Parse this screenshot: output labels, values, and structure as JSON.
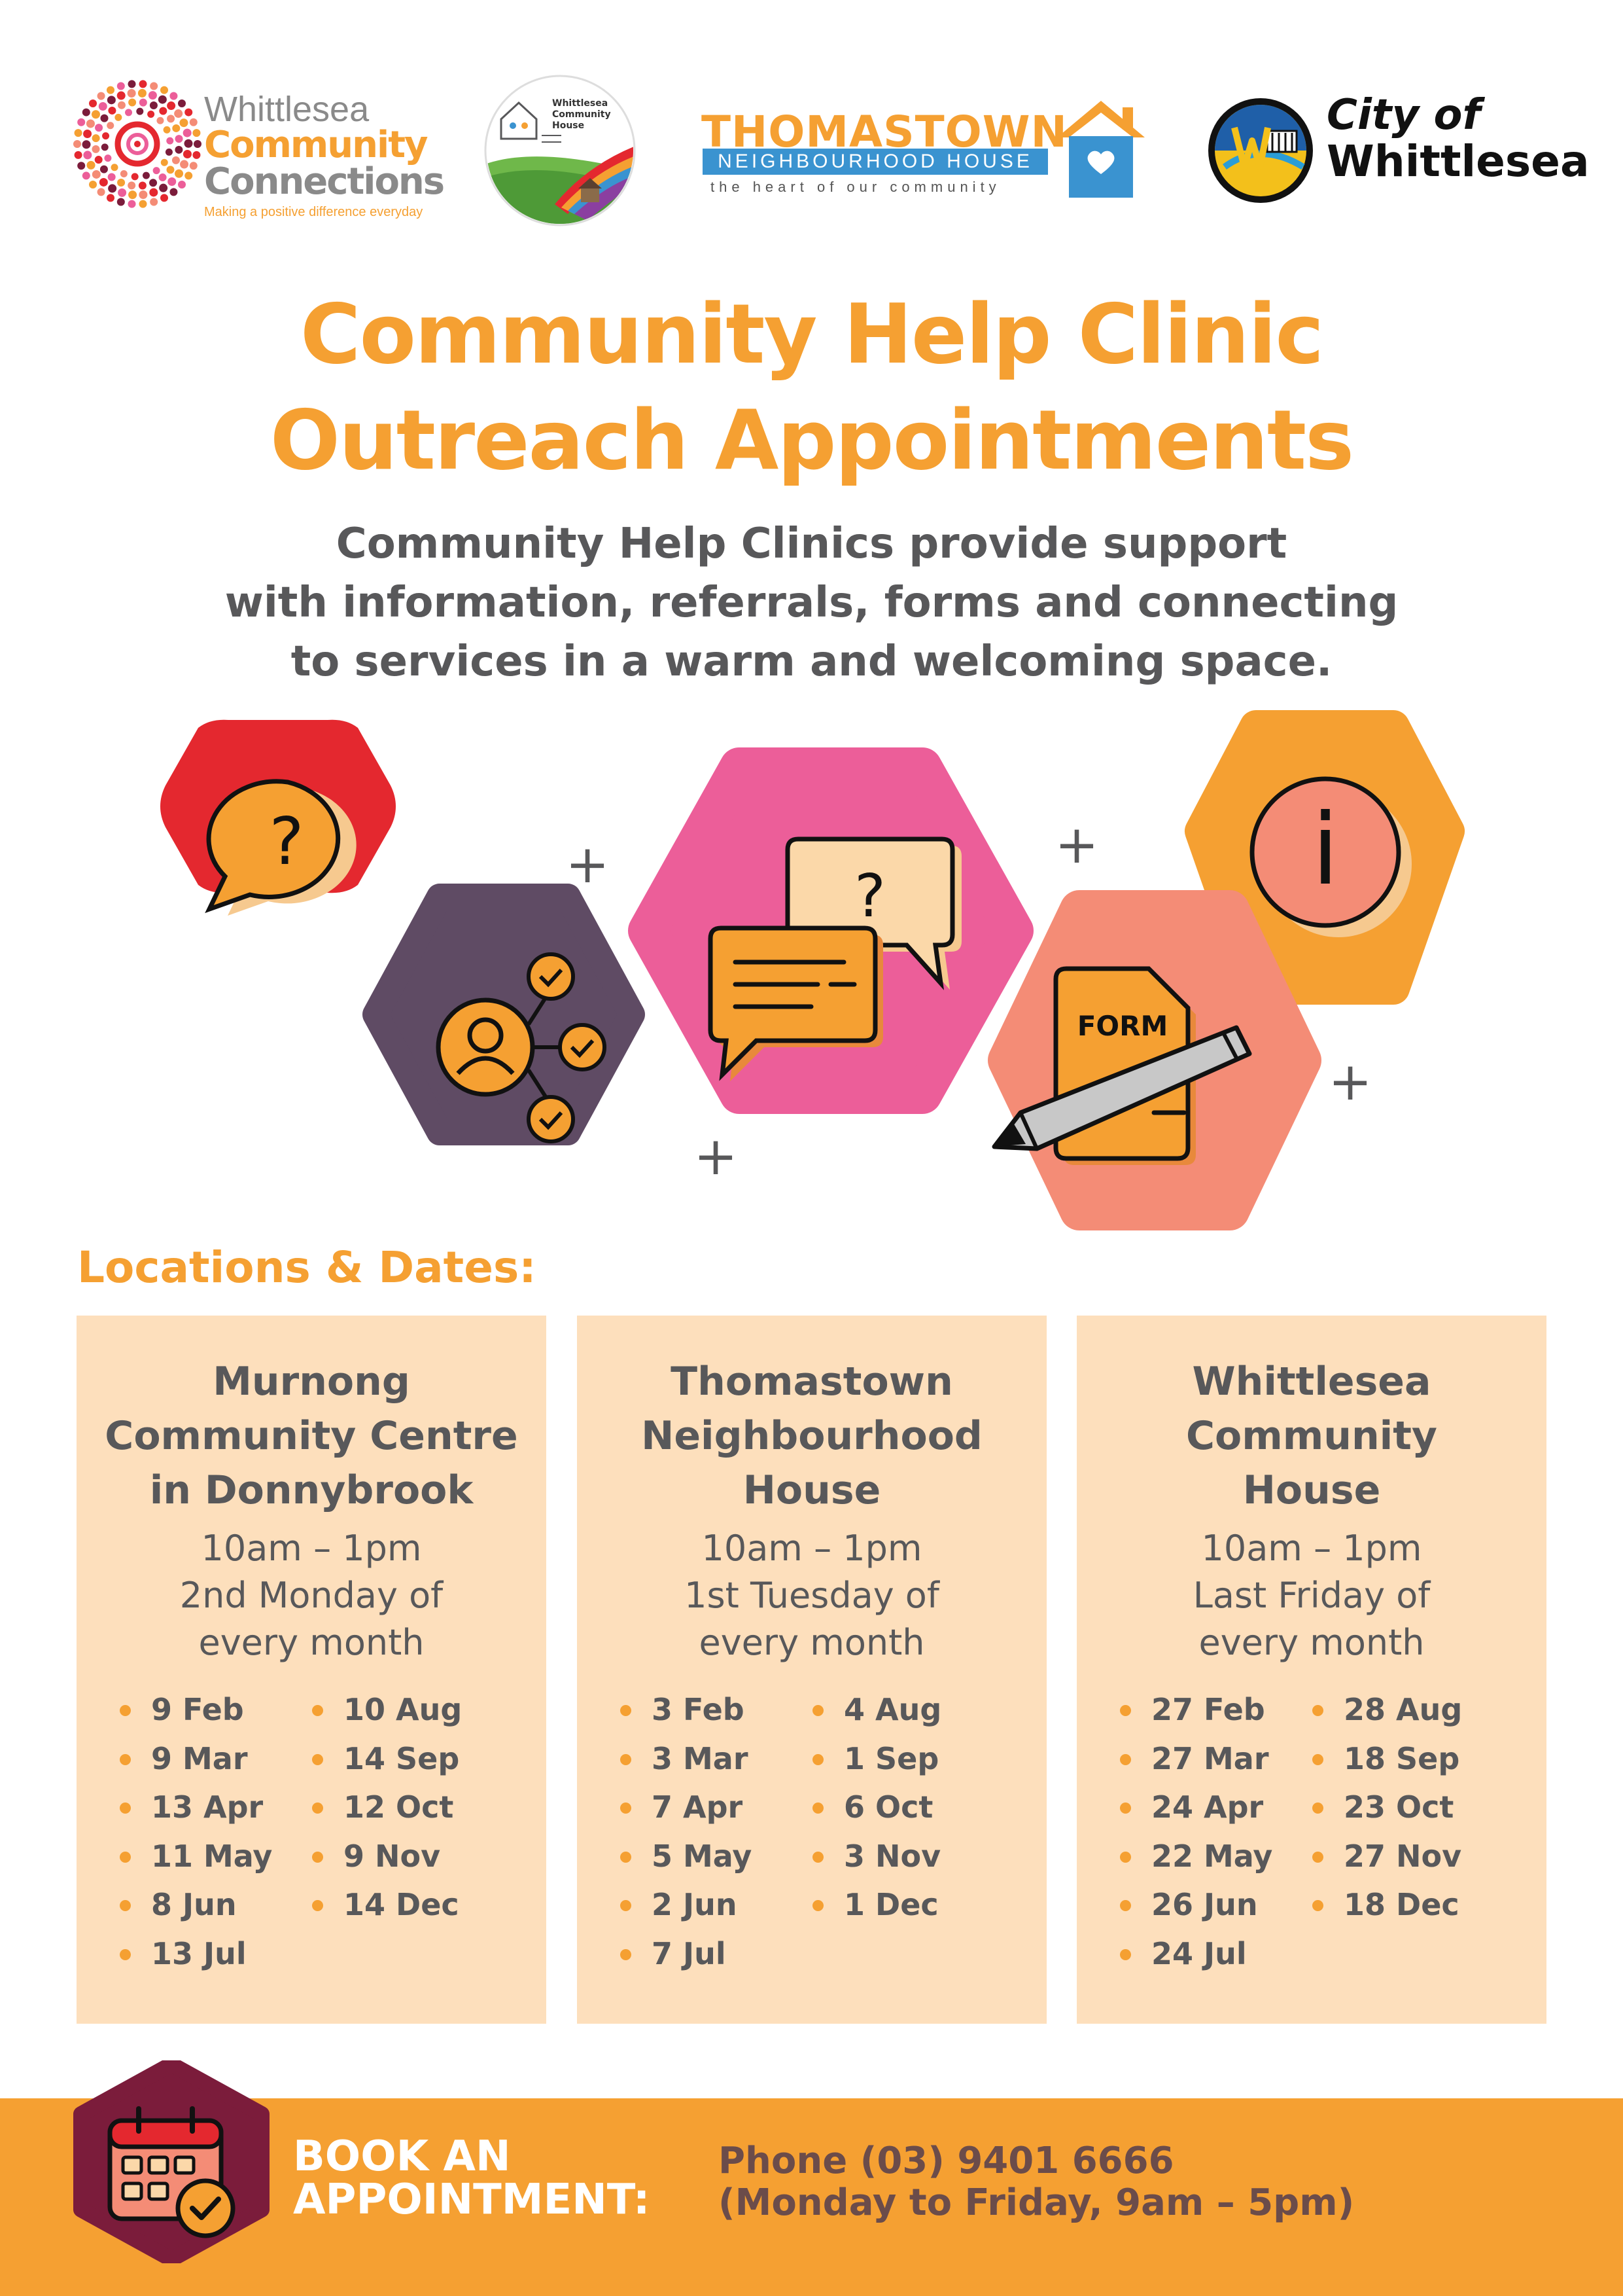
{
  "logos": {
    "whittlesea_community_connections": {
      "line1": "Whittlesea",
      "line2": "Community",
      "line3": "Connections",
      "tagline": "Making a positive difference everyday"
    },
    "whittlesea_community_house": {
      "text": "Whittlesea Community House"
    },
    "thomastown_neighbourhood_house": {
      "title": "THOMASTOWN",
      "subtitle": "NEIGHBOURHOOD HOUSE",
      "tagline": "the heart of our community"
    },
    "city_of_whittlesea": {
      "line1": "City of",
      "line2": "Whittlesea"
    }
  },
  "header": {
    "title_line1": "Community Help Clinic",
    "title_line2": "Outreach Appointments",
    "intro_line1": "Community Help Clinics provide support",
    "intro_line2": "with information, referrals, forms and connecting",
    "intro_line3": "to services in a warm and welcoming space."
  },
  "illustration": {
    "form_label": "FORM",
    "question_mark": "?",
    "info_mark": "i",
    "plus": "+"
  },
  "locations_heading": "Locations & Dates:",
  "locations": [
    {
      "name_lines": [
        "Murnong",
        "Community Centre",
        "in Donnybrook"
      ],
      "time": "10am – 1pm",
      "schedule_lines": [
        "2nd Monday of",
        "every month"
      ],
      "dates_col1": [
        "9 Feb",
        "9 Mar",
        "13 Apr",
        "11 May",
        "8 Jun",
        "13 Jul"
      ],
      "dates_col2": [
        "10 Aug",
        "14 Sep",
        "12 Oct",
        "9 Nov",
        "14 Dec"
      ]
    },
    {
      "name_lines": [
        "Thomastown",
        "Neighbourhood",
        "House"
      ],
      "time": "10am – 1pm",
      "schedule_lines": [
        "1st Tuesday of",
        "every month"
      ],
      "dates_col1": [
        "3 Feb",
        "3 Mar",
        "7 Apr",
        "5 May",
        "2 Jun",
        "7 Jul"
      ],
      "dates_col2": [
        "4 Aug",
        "1 Sep",
        "6 Oct",
        "3 Nov",
        "1 Dec"
      ]
    },
    {
      "name_lines": [
        "Whittlesea",
        "Community",
        "House"
      ],
      "time": "10am – 1pm",
      "schedule_lines": [
        "Last Friday of",
        "every month"
      ],
      "dates_col1": [
        "27 Feb",
        "27 Mar",
        "24 Apr",
        "22 May",
        "26 Jun",
        "24 Jul"
      ],
      "dates_col2": [
        "28 Aug",
        "18 Sep",
        "23 Oct",
        "27 Nov",
        "18 Dec"
      ]
    }
  ],
  "footer": {
    "book_line1": "BOOK AN",
    "book_line2": "APPOINTMENT:",
    "phone_line1": "Phone (03) 9401 6666",
    "phone_line2": "(Monday to Friday, 9am – 5pm)"
  },
  "colors": {
    "orange": "#f5a032",
    "grey_text": "#58585a",
    "card_bg": "#fddfbc",
    "red_hex": "#e4282f",
    "purple_hex": "#5f4b64",
    "pink_hex": "#ec5e99",
    "salmon_hex": "#f48c76",
    "footer_hex": "#7b1c3b"
  }
}
